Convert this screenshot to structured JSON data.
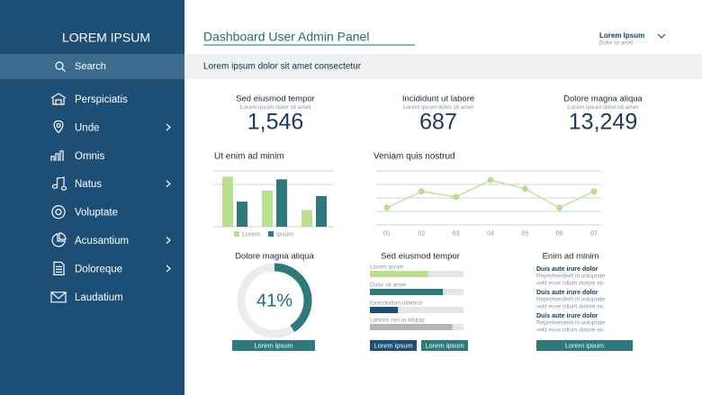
{
  "sidebar": {
    "title": "LOREM IPSUM",
    "search": "Search",
    "items": [
      {
        "label": "Perspiciatis",
        "has_arrow": false
      },
      {
        "label": "Unde",
        "has_arrow": true
      },
      {
        "label": "Omnis",
        "has_arrow": false
      },
      {
        "label": "Natus",
        "has_arrow": true
      },
      {
        "label": "Voluptate",
        "has_arrow": false
      },
      {
        "label": "Acusantium",
        "has_arrow": true
      },
      {
        "label": "Doloreque",
        "has_arrow": true
      },
      {
        "label": "Laudatium",
        "has_arrow": false
      }
    ]
  },
  "header": {
    "title": "Dashboard User Admin Panel",
    "subtitle": "Lorem ipsum dolor sit amet consectetur",
    "user": "Lorem Ipsum",
    "user_sub": "Dolor sit amet"
  },
  "stats": [
    {
      "title": "Sed eiusmod tempor",
      "subtitle": "Lorem ipsum dolor sit amet",
      "value": "1,546"
    },
    {
      "title": "Incididunt ut labore",
      "subtitle": "Lorem ipsum dolor sit amet",
      "value": "687"
    },
    {
      "title": "Dolore magna aliqua",
      "subtitle": "Lorem ipsum dolor sit amet",
      "value": "13,249"
    }
  ],
  "chart_data": [
    {
      "type": "bar",
      "title": "Ut enim ad minim",
      "categories": [
        null,
        null,
        null
      ],
      "ylim": [
        0,
        100
      ],
      "series": [
        {
          "name": "Lorem",
          "color": "#b9e08f",
          "values": [
            90,
            65,
            30
          ]
        },
        {
          "name": "Ipsum",
          "color": "#2e7a7a",
          "values": [
            45,
            85,
            55
          ]
        }
      ]
    },
    {
      "type": "line",
      "title": "Veniam quis nostrud",
      "categories": [
        "01",
        "02",
        "03",
        "04",
        "05",
        "06",
        "07"
      ],
      "values": [
        32,
        62,
        52,
        83,
        67,
        32,
        62
      ],
      "color": "#b9e08f",
      "ylim": [
        0,
        100
      ]
    },
    {
      "type": "pie",
      "title": "Dolore magna aliqua",
      "values": [
        41
      ],
      "value_labels": [
        "41%"
      ],
      "color": "#2e7a7a"
    },
    {
      "type": "progress",
      "title": "Sed eiusmod tempor",
      "categories": [
        "Lorem ipsum",
        "Dolor sit amet",
        "Exercitation ullamco",
        "Laboris nisi ut aliquip"
      ],
      "values": [
        62,
        78,
        30,
        88
      ],
      "colors": [
        "#b9e08f",
        "#2e7a7a",
        "#1d4e75",
        "#b5b5b5"
      ],
      "xlim": [
        0,
        100
      ]
    }
  ],
  "panels": {
    "donut_button": "Lorem ipsum",
    "progress_buttons": [
      "Lorem ipsum",
      "Lorem ipsum"
    ],
    "list": {
      "title": "Enim ad minim",
      "items": [
        {
          "heading": "Duis aute irure dolor",
          "lines": [
            "Reprehenderit in voluptate",
            "velit esse cillum dolore eu"
          ]
        },
        {
          "heading": "Duis aute irure dolor",
          "lines": [
            "Reprehenderit in voluptate",
            "velit esse cillum dolore eu"
          ]
        },
        {
          "heading": "Duis aute irure dolor",
          "lines": [
            "Reprehenderit in voluptate",
            "velit esse cillum dolore eu"
          ]
        }
      ],
      "button": "Lorem ipsum"
    }
  }
}
